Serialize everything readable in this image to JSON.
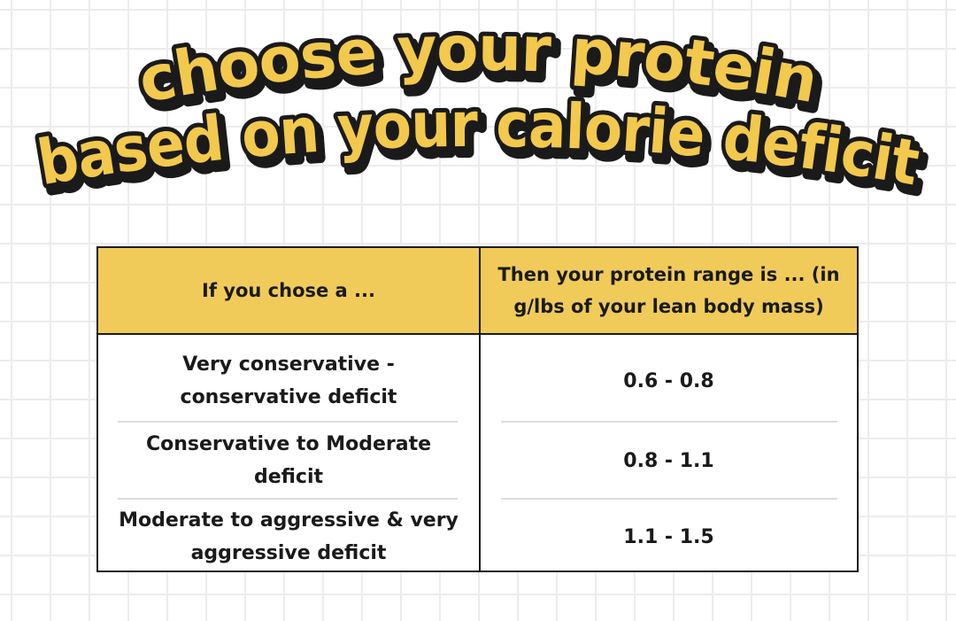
{
  "title": {
    "line1": "choose your protein",
    "line2": "based on your calorie deficit"
  },
  "colors": {
    "accent_yellow": "#f0cb5a",
    "title_fill": "#f2c94c",
    "ink": "#1a1a1a",
    "grid": "#ececec"
  },
  "table": {
    "headers": {
      "left": "If you chose a ...",
      "right": "Then your protein range is ... (in g/lbs of your lean body mass)"
    },
    "rows": [
      {
        "deficit": "Very conservative - conservative  deficit",
        "range": "0.6 - 0.8"
      },
      {
        "deficit": "Conservative to Moderate deficit",
        "range": "0.8 - 1.1"
      },
      {
        "deficit": "Moderate to aggressive & very aggressive deficit",
        "range": "1.1 - 1.5"
      }
    ]
  }
}
